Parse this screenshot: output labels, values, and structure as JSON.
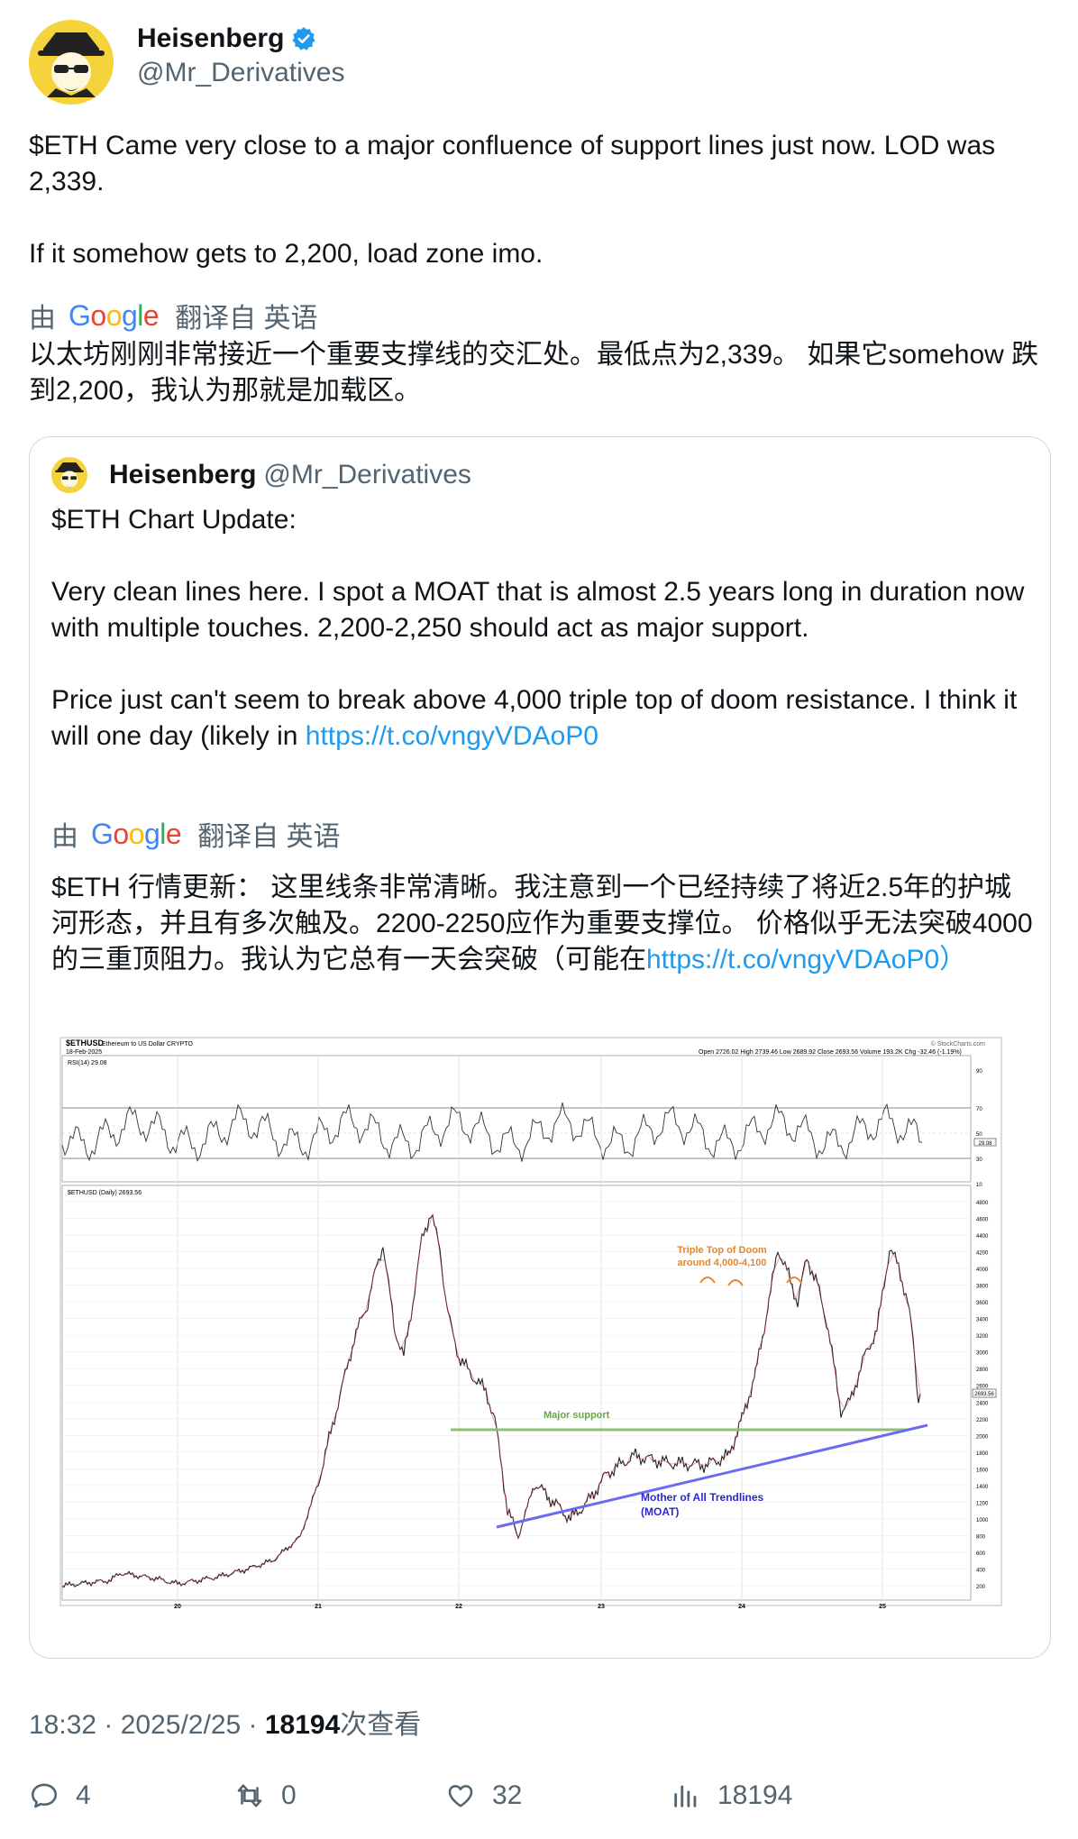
{
  "author": {
    "display_name": "Heisenberg",
    "handle": "@Mr_Derivatives"
  },
  "tweet": {
    "text": "$ETH Came very close to a major confluence of support lines just now. LOD was 2,339.\n\nIf it somehow gets to 2,200, load zone imo.",
    "translate_by": "由",
    "translate_from": "翻译自 英语",
    "translated_text": "以太坊刚刚非常接近一个重要支撑线的交汇处。最低点为2,339。 如果它somehow 跌到2,200，我认为那就是加载区。"
  },
  "quoted": {
    "display_name": "Heisenberg",
    "handle": "@Mr_Derivatives",
    "text": "$ETH Chart Update:\n\nVery clean lines here. I spot a MOAT that is almost 2.5 years long in duration now with multiple touches. 2,200-2,250 should act as major support.\n\nPrice just can't seem to break above 4,000 triple top of doom resistance. I think it will one day (likely in ",
    "link": "https://t.co/vngyVDAoP0",
    "translate_by": "由",
    "translate_from": "翻译自 英语",
    "translated_text": "$ETH 行情更新： 这里线条非常清晰。我注意到一个已经持续了将近2.5年的护城河形态，并且有多次触及。2200-2250应作为重要支撑位。 价格似乎无法突破4000的三重顶阻力。我认为它总有一天会突破（可能在",
    "translated_link": "https://t.co/vngyVDAoP0）"
  },
  "chart": {
    "symbol": "$ETHUSD",
    "subtitle": "Ethereum to US Dollar CRYPTO",
    "date": "18-Feb-2025",
    "ohlc": "Open 2726.02  High 2739.46  Low 2689.92  Close 2693.56  Volume 193.2K  Chg -32.46 (-1.19%)",
    "source": "© StockCharts.com",
    "rsi_label": "RSI(14) 29.08",
    "rsi_value_tag": "29.08",
    "main_label": "$ETHUSD (Daily) 2693.56",
    "price_tag": "2693.56",
    "rsi_ticks": [
      "90",
      "70",
      "50",
      "30",
      "10"
    ],
    "price_ticks": [
      "4800",
      "4600",
      "4400",
      "4200",
      "4000",
      "3800",
      "3600",
      "3400",
      "3200",
      "3000",
      "2800",
      "2600",
      "2400",
      "2200",
      "2000",
      "1800",
      "1600",
      "1400",
      "1200",
      "1000",
      "800",
      "600",
      "400",
      "200"
    ],
    "x_ticks": [
      "20",
      "21",
      "22",
      "23",
      "24",
      "25"
    ],
    "annotation_top_1": "Triple Top of Doom",
    "annotation_top_2": "around 4,000-4,100",
    "annotation_support": "Major support",
    "annotation_moat_1": "Mother of All Trendlines",
    "annotation_moat_2": "(MOAT)",
    "colors": {
      "support": "#8fbf70",
      "moat": "#6b6bf0",
      "doom": "#e8862a",
      "moat_text": "#2a2acc"
    }
  },
  "meta": {
    "time": "18:32 · 2025/2/25 · ",
    "views_count": "18194",
    "views_label": "次查看"
  },
  "actions": {
    "replies": "4",
    "retweets": "0",
    "likes": "32",
    "views": "18194"
  }
}
